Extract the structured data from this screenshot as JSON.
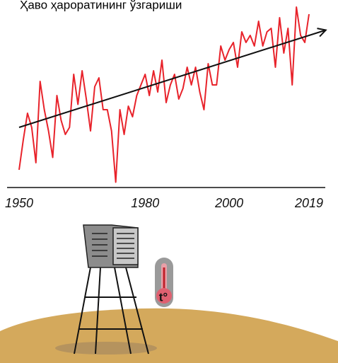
{
  "chart_data": {
    "type": "line",
    "title": "Ҳаво ҳароратининг ўзгариши",
    "x": [
      1950,
      1951,
      1952,
      1953,
      1954,
      1955,
      1956,
      1957,
      1958,
      1959,
      1960,
      1961,
      1962,
      1963,
      1964,
      1965,
      1966,
      1967,
      1968,
      1969,
      1970,
      1971,
      1972,
      1973,
      1974,
      1975,
      1976,
      1977,
      1978,
      1979,
      1980,
      1981,
      1982,
      1983,
      1984,
      1985,
      1986,
      1987,
      1988,
      1989,
      1990,
      1991,
      1992,
      1993,
      1994,
      1995,
      1996,
      1997,
      1998,
      1999,
      2000,
      2001,
      2002,
      2003,
      2004,
      2005,
      2006,
      2007,
      2008,
      2009,
      2010,
      2011,
      2012,
      2013,
      2014,
      2015,
      2016,
      2017,
      2018,
      2019
    ],
    "values": [
      8,
      25,
      40,
      32,
      12,
      58,
      42,
      30,
      15,
      50,
      36,
      28,
      32,
      62,
      45,
      64,
      48,
      30,
      55,
      60,
      42,
      42,
      30,
      1,
      42,
      28,
      44,
      38,
      50,
      56,
      62,
      50,
      64,
      52,
      70,
      46,
      56,
      62,
      48,
      54,
      66,
      56,
      66,
      52,
      42,
      68,
      56,
      56,
      78,
      70,
      76,
      80,
      66,
      86,
      80,
      84,
      78,
      92,
      78,
      86,
      88,
      66,
      94,
      74,
      88,
      56,
      100,
      84,
      80,
      96
    ],
    "color": "#e8232b",
    "xlim": [
      1950,
      2019
    ],
    "xticks": [
      1950,
      1980,
      2000,
      2019
    ],
    "ylim": [
      0,
      100
    ],
    "trend": {
      "x": [
        1950,
        2023
      ],
      "values": [
        32,
        87
      ],
      "color": "#111111"
    }
  },
  "illustration": {
    "thermometer_label": "t°"
  }
}
